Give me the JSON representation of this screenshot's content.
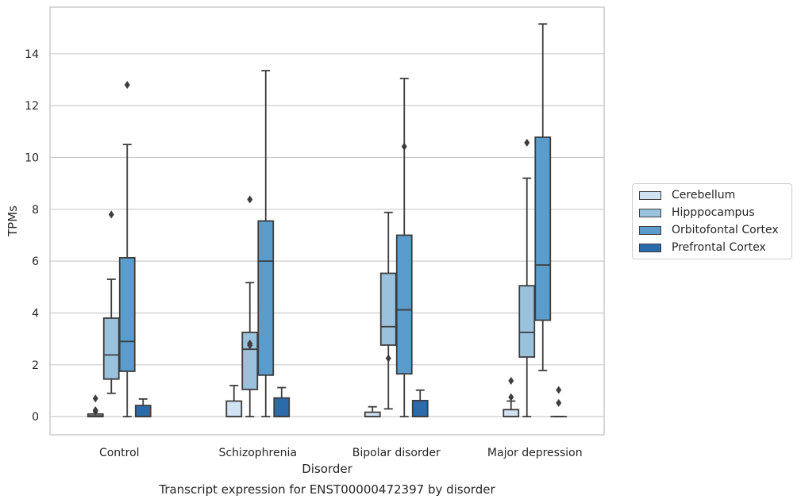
{
  "chart_data": {
    "type": "box",
    "xlabel": "Disorder",
    "ylabel": "TPMs",
    "caption": "Transcript expression for ENST00000472397 by disorder",
    "ylim": [
      -0.7,
      15.8
    ],
    "yticks": [
      0,
      2,
      4,
      6,
      8,
      10,
      12,
      14
    ],
    "grid": "horizontal",
    "legend_position": "right",
    "categories": [
      "Control",
      "Schizophrenia",
      "Bipolar disorder",
      "Major depression"
    ],
    "series": [
      {
        "name": "Cerebellum",
        "color": "#d1e2f2",
        "boxes": [
          {
            "whislo": 0,
            "q1": 0,
            "med": 0.03,
            "q3": 0.1,
            "whishi": 0.1,
            "fliers": [
              0.7,
              0.25,
              0.2
            ]
          },
          {
            "whislo": 0,
            "q1": 0,
            "med": 0,
            "q3": 0.6,
            "whishi": 1.2,
            "fliers": []
          },
          {
            "whislo": 0,
            "q1": 0,
            "med": 0,
            "q3": 0.17,
            "whishi": 0.38,
            "fliers": []
          },
          {
            "whislo": 0,
            "q1": 0,
            "med": 0,
            "q3": 0.27,
            "whishi": 0.6,
            "fliers": [
              1.38,
              0.75
            ]
          }
        ]
      },
      {
        "name": "Hipppocampus",
        "color": "#9ac2dc",
        "boxes": [
          {
            "whislo": 0.9,
            "q1": 1.45,
            "med": 2.38,
            "q3": 3.8,
            "whishi": 5.3,
            "fliers": [
              7.8
            ]
          },
          {
            "whislo": 0,
            "q1": 1.05,
            "med": 2.6,
            "q3": 3.25,
            "whishi": 5.17,
            "fliers": [
              8.38,
              2.82,
              2.75
            ]
          },
          {
            "whislo": 0.3,
            "q1": 2.76,
            "med": 3.47,
            "q3": 5.53,
            "whishi": 7.88,
            "fliers": [
              2.25
            ]
          },
          {
            "whislo": 0,
            "q1": 2.3,
            "med": 3.25,
            "q3": 5.05,
            "whishi": 9.2,
            "fliers": [
              10.57
            ]
          }
        ]
      },
      {
        "name": "Orbitofontal Cortex",
        "color": "#5a9ccb",
        "boxes": [
          {
            "whislo": 0,
            "q1": 1.75,
            "med": 2.9,
            "q3": 6.13,
            "whishi": 10.5,
            "fliers": [
              12.8
            ]
          },
          {
            "whislo": 0,
            "q1": 1.6,
            "med": 6.0,
            "q3": 7.55,
            "whishi": 13.35,
            "fliers": []
          },
          {
            "whislo": 0,
            "q1": 1.65,
            "med": 4.12,
            "q3": 7.0,
            "whishi": 13.05,
            "fliers": [
              10.42
            ]
          },
          {
            "whislo": 1.78,
            "q1": 3.72,
            "med": 5.85,
            "q3": 10.78,
            "whishi": 15.15,
            "fliers": []
          }
        ]
      },
      {
        "name": "Prefrontal Cortex",
        "color": "#2b6ba9",
        "boxes": [
          {
            "whislo": 0,
            "q1": 0,
            "med": 0,
            "q3": 0.43,
            "whishi": 0.68,
            "fliers": []
          },
          {
            "whislo": 0,
            "q1": 0,
            "med": 0,
            "q3": 0.72,
            "whishi": 1.12,
            "fliers": []
          },
          {
            "whislo": 0,
            "q1": 0,
            "med": 0,
            "q3": 0.62,
            "whishi": 1.02,
            "fliers": []
          },
          {
            "whislo": 0,
            "q1": 0,
            "med": 0,
            "q3": 0,
            "whishi": 0,
            "fliers": [
              1.03,
              0.53
            ]
          }
        ]
      }
    ]
  }
}
